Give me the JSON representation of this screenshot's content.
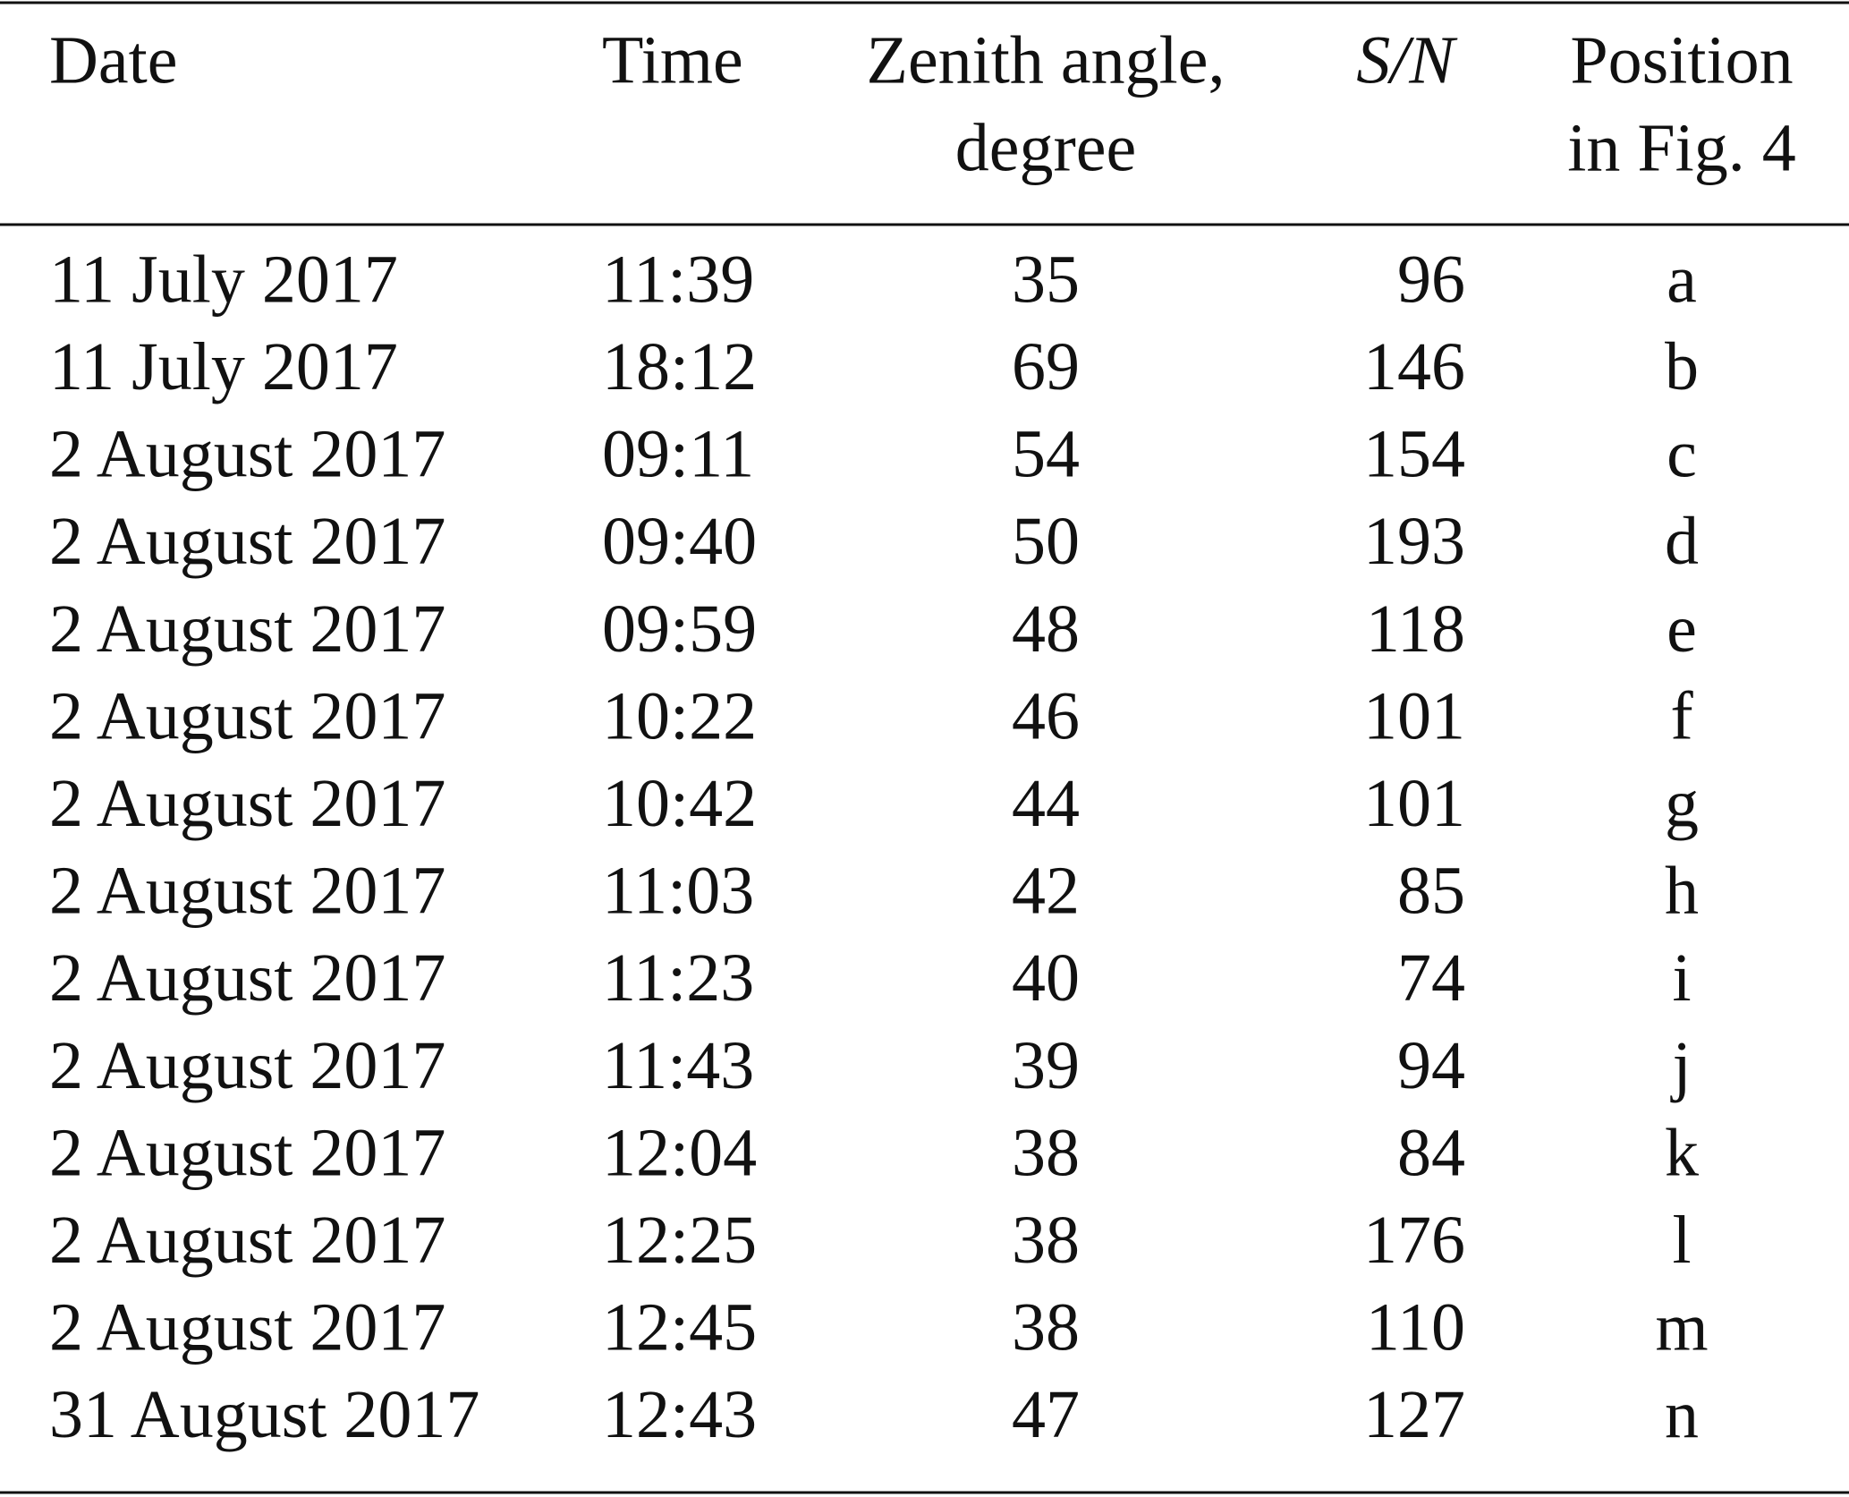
{
  "table": {
    "header": [
      [
        "Date"
      ],
      [
        "Time"
      ],
      [
        "Zenith angle,",
        "degree"
      ],
      [
        "S/N"
      ],
      [
        "Position",
        "in Fig. 4"
      ]
    ],
    "rows": [
      [
        "11 July 2017",
        "11:39",
        35,
        96,
        "a"
      ],
      [
        "11 July 2017",
        "18:12",
        69,
        146,
        "b"
      ],
      [
        "2 August 2017",
        "09:11",
        54,
        154,
        "c"
      ],
      [
        "2 August 2017",
        "09:40",
        50,
        193,
        "d"
      ],
      [
        "2 August 2017",
        "09:59",
        48,
        118,
        "e"
      ],
      [
        "2 August 2017",
        "10:22",
        46,
        101,
        "f"
      ],
      [
        "2 August 2017",
        "10:42",
        44,
        101,
        "g"
      ],
      [
        "2 August 2017",
        "11:03",
        42,
        85,
        "h"
      ],
      [
        "2 August 2017",
        "11:23",
        40,
        74,
        "i"
      ],
      [
        "2 August 2017",
        "11:43",
        39,
        94,
        "j"
      ],
      [
        "2 August 2017",
        "12:04",
        38,
        84,
        "k"
      ],
      [
        "2 August 2017",
        "12:25",
        38,
        176,
        "l"
      ],
      [
        "2 August 2017",
        "12:45",
        38,
        110,
        "m"
      ],
      [
        "31 August 2017",
        "12:43",
        47,
        127,
        "n"
      ]
    ]
  }
}
